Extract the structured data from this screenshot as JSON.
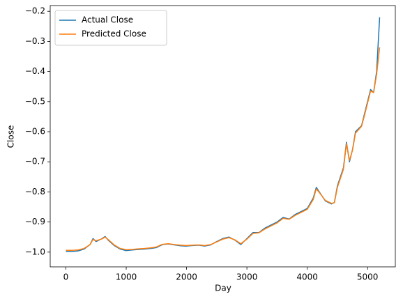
{
  "chart_data": {
    "type": "line",
    "xlabel": "Day",
    "ylabel": "Close",
    "x": [
      0,
      100,
      200,
      300,
      400,
      450,
      500,
      600,
      650,
      700,
      800,
      900,
      1000,
      1100,
      1200,
      1300,
      1400,
      1500,
      1600,
      1700,
      1800,
      1900,
      2000,
      2100,
      2200,
      2300,
      2400,
      2500,
      2600,
      2700,
      2800,
      2900,
      3000,
      3100,
      3200,
      3300,
      3400,
      3500,
      3600,
      3700,
      3800,
      3900,
      4000,
      4100,
      4150,
      4200,
      4300,
      4400,
      4450,
      4500,
      4600,
      4650,
      4700,
      4750,
      4800,
      4900,
      4950,
      5000,
      5050,
      5100,
      5150,
      5200
    ],
    "series": [
      {
        "name": "Actual Close",
        "color": "#1f77b4",
        "values": [
          -0.998,
          -0.998,
          -0.996,
          -0.99,
          -0.975,
          -0.955,
          -0.965,
          -0.955,
          -0.948,
          -0.96,
          -0.978,
          -0.99,
          -0.995,
          -0.993,
          -0.991,
          -0.99,
          -0.988,
          -0.985,
          -0.975,
          -0.973,
          -0.976,
          -0.979,
          -0.98,
          -0.978,
          -0.977,
          -0.98,
          -0.976,
          -0.965,
          -0.955,
          -0.95,
          -0.96,
          -0.975,
          -0.955,
          -0.935,
          -0.935,
          -0.92,
          -0.91,
          -0.9,
          -0.885,
          -0.89,
          -0.875,
          -0.865,
          -0.855,
          -0.82,
          -0.785,
          -0.8,
          -0.83,
          -0.84,
          -0.835,
          -0.78,
          -0.72,
          -0.635,
          -0.7,
          -0.66,
          -0.6,
          -0.58,
          -0.54,
          -0.5,
          -0.46,
          -0.47,
          -0.4,
          -0.22
        ]
      },
      {
        "name": "Predicted Close",
        "color": "#ff7f0e",
        "values": [
          -0.994,
          -0.994,
          -0.993,
          -0.988,
          -0.975,
          -0.958,
          -0.962,
          -0.956,
          -0.95,
          -0.958,
          -0.976,
          -0.988,
          -0.992,
          -0.991,
          -0.989,
          -0.988,
          -0.986,
          -0.983,
          -0.974,
          -0.972,
          -0.975,
          -0.977,
          -0.978,
          -0.977,
          -0.976,
          -0.978,
          -0.975,
          -0.966,
          -0.957,
          -0.952,
          -0.959,
          -0.972,
          -0.957,
          -0.938,
          -0.936,
          -0.923,
          -0.913,
          -0.903,
          -0.888,
          -0.891,
          -0.878,
          -0.868,
          -0.858,
          -0.825,
          -0.79,
          -0.802,
          -0.828,
          -0.838,
          -0.836,
          -0.785,
          -0.725,
          -0.64,
          -0.695,
          -0.662,
          -0.605,
          -0.582,
          -0.545,
          -0.505,
          -0.465,
          -0.47,
          -0.41,
          -0.32
        ]
      }
    ],
    "xlim": [
      -260,
      5460
    ],
    "xticks": [
      0,
      1000,
      2000,
      3000,
      4000,
      5000
    ],
    "ylim": [
      -1.049,
      -0.181
    ],
    "yticks": [
      {
        "value": -1.0,
        "label": "−1.0"
      },
      {
        "value": -0.9,
        "label": "−0.9"
      },
      {
        "value": -0.8,
        "label": "−0.8"
      },
      {
        "value": -0.7,
        "label": "−0.7"
      },
      {
        "value": -0.6,
        "label": "−0.6"
      },
      {
        "value": -0.5,
        "label": "−0.5"
      },
      {
        "value": -0.4,
        "label": "−0.4"
      },
      {
        "value": -0.3,
        "label": "−0.3"
      },
      {
        "value": -0.2,
        "label": "−0.2"
      }
    ],
    "legend": "upper left"
  }
}
